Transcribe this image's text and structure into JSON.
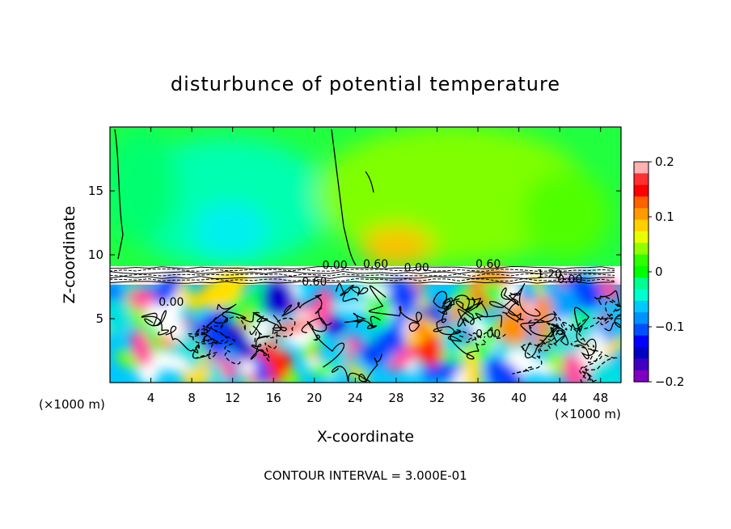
{
  "chart_data": {
    "type": "heatmap",
    "title": "disturbunce of potential temperature",
    "xlabel": "X-coordinate",
    "ylabel": "Z-coordinate",
    "x_unit_label": "(×1000 m)",
    "x_unit_label_right": "(×1000 m)",
    "xlim": [
      0,
      50
    ],
    "ylim": [
      0,
      20
    ],
    "x_ticks": [
      4,
      8,
      12,
      16,
      20,
      24,
      28,
      32,
      36,
      40,
      44,
      48
    ],
    "y_ticks": [
      5,
      10,
      15
    ],
    "colorbar": {
      "range": [
        -0.2,
        0.2
      ],
      "tick_values": [
        0.2,
        0.1,
        0,
        -0.1,
        -0.2
      ],
      "tick_labels": [
        "0.2",
        "0.1",
        "0",
        "−0.1",
        "−0.2"
      ],
      "colors": [
        "#ffb0b0",
        "#ff3030",
        "#ff0000",
        "#ff6000",
        "#ff9a00",
        "#ffd000",
        "#e8ff00",
        "#90ff00",
        "#30ff00",
        "#00ff00",
        "#00ff90",
        "#00ffd0",
        "#00c8ff",
        "#0090ff",
        "#0050ff",
        "#0000ff",
        "#0000c0",
        "#4000c0",
        "#8000c0"
      ]
    },
    "contour_labels": [
      "0.00",
      "0.60",
      "0.00",
      "0.60",
      "0.60",
      "1.20",
      "0.00",
      "0.00",
      "0.00"
    ],
    "footer": "CONTOUR INTERVAL = 3.000E-01"
  }
}
